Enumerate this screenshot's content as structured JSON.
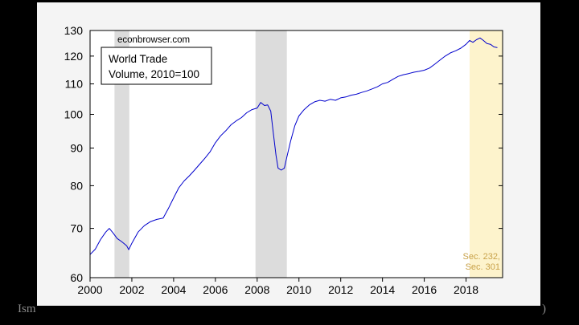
{
  "footer": {
    "left_fragment": "Ism",
    "right_fragment": ")"
  },
  "colors": {
    "line": "#0000cc",
    "recession_shade": "#dcdcdc",
    "tariff_shade": "#fdf3cc",
    "tariff_text": "#c8a24a",
    "plot_bg": "#ffffff",
    "frame_bg": "#f4f4f4"
  },
  "chart_data": {
    "type": "line",
    "title": "",
    "watermark": "econbrowser.com",
    "legend_box": [
      "World Trade",
      "Volume, 2010=100"
    ],
    "xlabel": "",
    "ylabel": "",
    "y_scale": "log",
    "xlim": [
      2000.0,
      2019.75
    ],
    "ylim": [
      60,
      130
    ],
    "x_ticks": [
      2000,
      2002,
      2004,
      2006,
      2008,
      2010,
      2012,
      2014,
      2016,
      2018
    ],
    "x_tick_labels": [
      "2000",
      "2002",
      "2004",
      "2006",
      "2008",
      "2010",
      "2012",
      "2014",
      "2016",
      "2018"
    ],
    "y_ticks": [
      60,
      70,
      80,
      90,
      100,
      110,
      120,
      130
    ],
    "y_tick_labels": [
      "60",
      "70",
      "80",
      "90",
      "100",
      "110",
      "120",
      "130"
    ],
    "grid": false,
    "shaded_periods": [
      {
        "kind": "recession",
        "start": 2001.17,
        "end": 2001.88
      },
      {
        "kind": "recession",
        "start": 2007.92,
        "end": 2009.42
      },
      {
        "kind": "tariff",
        "start": 2018.17,
        "end": 2019.75,
        "labels": [
          "Sec. 232,",
          "Sec. 301"
        ]
      }
    ],
    "series": [
      {
        "x": [
          2000.0,
          2000.25,
          2000.5,
          2000.75,
          2000.92,
          2001.1,
          2001.3,
          2001.5,
          2001.75,
          2001.85,
          2002.0,
          2002.3,
          2002.6,
          2002.9,
          2003.2,
          2003.5,
          2003.75,
          2004.0,
          2004.25,
          2004.5,
          2004.75,
          2005.0,
          2005.25,
          2005.5,
          2005.75,
          2006.0,
          2006.25,
          2006.5,
          2006.75,
          2007.0,
          2007.25,
          2007.5,
          2007.75,
          2008.0,
          2008.17,
          2008.35,
          2008.5,
          2008.65,
          2008.75,
          2008.9,
          2009.0,
          2009.15,
          2009.3,
          2009.42,
          2009.6,
          2009.8,
          2010.0,
          2010.25,
          2010.5,
          2010.75,
          2011.0,
          2011.25,
          2011.5,
          2011.75,
          2012.0,
          2012.25,
          2012.5,
          2012.75,
          2013.0,
          2013.25,
          2013.5,
          2013.75,
          2014.0,
          2014.25,
          2014.5,
          2014.75,
          2015.0,
          2015.25,
          2015.5,
          2015.75,
          2016.0,
          2016.25,
          2016.5,
          2016.75,
          2017.0,
          2017.25,
          2017.5,
          2017.75,
          2018.0,
          2018.17,
          2018.33,
          2018.5,
          2018.67,
          2018.83,
          2019.0,
          2019.17,
          2019.33,
          2019.5
        ],
        "values": [
          64.5,
          65.6,
          67.6,
          69.2,
          70.0,
          69.0,
          67.8,
          67.2,
          66.3,
          65.5,
          66.8,
          69.2,
          70.6,
          71.5,
          72.0,
          72.3,
          74.5,
          77.0,
          79.5,
          81.2,
          82.5,
          84.0,
          85.6,
          87.2,
          89.0,
          91.5,
          93.5,
          95.0,
          96.8,
          98.0,
          99.0,
          100.5,
          101.5,
          102.0,
          103.8,
          102.8,
          103.0,
          101.0,
          95.5,
          88.0,
          84.5,
          84.0,
          84.5,
          87.5,
          92.0,
          96.5,
          99.5,
          101.5,
          103.0,
          104.0,
          104.5,
          104.2,
          104.8,
          104.5,
          105.3,
          105.6,
          106.2,
          106.5,
          107.1,
          107.6,
          108.3,
          109.0,
          110.0,
          110.5,
          111.6,
          112.6,
          113.2,
          113.6,
          114.1,
          114.4,
          114.8,
          115.6,
          117.0,
          118.5,
          120.0,
          121.2,
          122.0,
          123.0,
          124.5,
          126.0,
          125.3,
          126.3,
          127.0,
          126.0,
          124.8,
          124.5,
          123.5,
          123.2
        ]
      }
    ]
  }
}
